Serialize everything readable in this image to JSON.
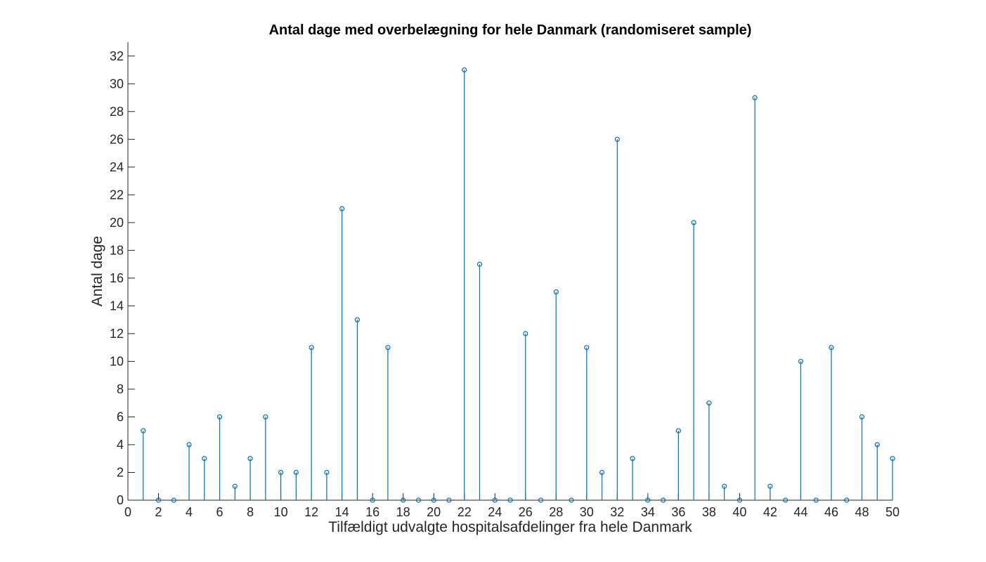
{
  "chart_data": {
    "type": "stem",
    "title": "Antal dage med overbelægning for hele Danmark (randomiseret sample)",
    "xlabel": "Tilfældigt udvalgte hospitalsafdelinger fra hele Danmark",
    "ylabel": "Antal dage",
    "xlim": [
      0,
      50
    ],
    "ylim": [
      0,
      33
    ],
    "xticks": [
      0,
      2,
      4,
      6,
      8,
      10,
      12,
      14,
      16,
      18,
      20,
      22,
      24,
      26,
      28,
      30,
      32,
      34,
      36,
      38,
      40,
      42,
      44,
      46,
      48,
      50
    ],
    "yticks": [
      0,
      2,
      4,
      6,
      8,
      10,
      12,
      14,
      16,
      18,
      20,
      22,
      24,
      26,
      28,
      30,
      32
    ],
    "grid": false,
    "legend": "none",
    "color": "#0072BD",
    "series": [
      {
        "x": [
          1,
          2,
          3,
          4,
          5,
          6,
          7,
          8,
          9,
          10,
          11,
          12,
          13,
          14,
          15,
          16,
          17,
          18,
          19,
          20,
          21,
          22,
          23,
          24,
          25,
          26,
          27,
          28,
          29,
          30,
          31,
          32,
          33,
          34,
          35,
          36,
          37,
          38,
          39,
          40,
          41,
          42,
          43,
          44,
          45,
          46,
          47,
          48,
          49,
          50
        ],
        "values": [
          5,
          0,
          0,
          4,
          3,
          6,
          1,
          3,
          6,
          2,
          2,
          11,
          2,
          21,
          13,
          0,
          11,
          0,
          0,
          0,
          0,
          31,
          17,
          0,
          0,
          12,
          0,
          15,
          0,
          11,
          2,
          26,
          3,
          0,
          0,
          5,
          20,
          7,
          1,
          0,
          29,
          1,
          0,
          10,
          0,
          11,
          0,
          6,
          4,
          3
        ]
      }
    ]
  }
}
